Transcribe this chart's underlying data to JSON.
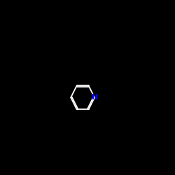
{
  "background": "#000000",
  "bond_color": "#FFFFFF",
  "colors": {
    "F": "#00CC00",
    "N": "#0000FF",
    "S": "#DAA520",
    "O": "#FF4500",
    "NH2": "#0000FF"
  },
  "font_size_atom": 7,
  "font_size_subscript": 5
}
